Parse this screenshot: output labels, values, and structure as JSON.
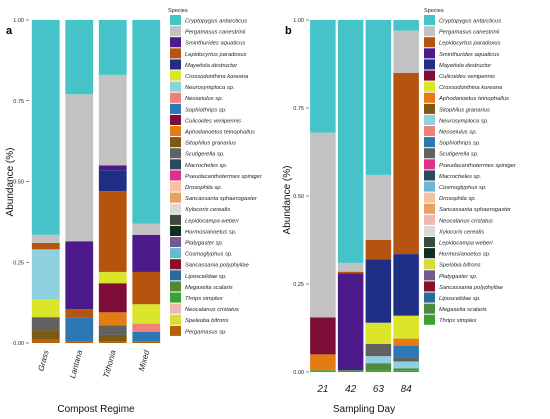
{
  "colors": {
    "Cryptopygus antarcticus": "#45c3c8",
    "Pergamasus canestrinii": "#c2c2c2",
    "Sminthurides aquaticus": "#4c1a8a",
    "Lepidocyrtus paradoxus": "#b5540f",
    "Mayetiola destructor": "#1f2f86",
    "Crossodonthina koreana": "#dbe52a",
    "Neurosymploca sp.": "#8ecfe0",
    "Neoseiulus sp.": "#f17f7a",
    "Sophiothrips sp.": "#2c78b2",
    "Culicoides venipennis": "#7e0e38",
    "Aphodanoetus teinophallus": "#e57c12",
    "Sitophilus granarius": "#7a5a14",
    "Scutigerella sp.": "#616161",
    "Macrocheles sp.": "#2a4a59",
    "Pseudacanthotermes spiniger": "#e02f8c",
    "Drosophila sp.": "#f4c2a0",
    "Sancassania sphaerogaster": "#e8a25f",
    "Xylocoris cerealis": "#d9d9d9",
    "Lepidocampa weberi": "#3b4a3b",
    "Hormosianoetus sp.": "#0f2e1c",
    "Platygaster sp.": "#6f5e8d",
    "Cosmoglyphus sp.": "#6db5d6",
    "Sancassania polyphyllae": "#8c0e22",
    "Liposcelidae sp.": "#2b6b96",
    "Megaselia scalaris": "#4e8a3b",
    "Thrips simplex": "#3ca132",
    "Neocalanus cristatus": "#f0b8b0",
    "Speleoba bifrons": "#d6dc3a",
    "Spelobia bifrons": "#d6dc3a",
    "Pergamasus sp.": "#b6610a"
  },
  "panel_a": {
    "label": "a",
    "xlabel": "Compost Regime",
    "ylabel": "Abundance (%)",
    "yticks": [
      "0.00",
      "0.25",
      "0.50",
      "0.75",
      "1.00"
    ],
    "legend_title": "Species",
    "legend": [
      "Cryptopygus antarcticus",
      "Pergamasus canestrinii",
      "Sminthurides aquaticus",
      "Lepidocyrtus paradoxus",
      "Mayetiola destructor",
      "Crossodonthina koreana",
      "Neurosymploca sp.",
      "Neoseiulus sp.",
      "Sophiothrips sp.",
      "Culicoides venipennis",
      "Aphodanoetus teinophallus",
      "Sitophilus granarius",
      "Scutigerella sp.",
      "Macrocheles sp.",
      "Pseudacanthotermes spiniger",
      "Drosophila sp.",
      "Sancassania sphaerogaster",
      "Xylocoris cerealis",
      "Lepidocampa weberi",
      "Hormosianoetus sp.",
      "Platygaster sp.",
      "Cosmoglyphus sp.",
      "Sancassania polyphyllae",
      "Liposcelidae sp.",
      "Megaselia scalaris",
      "Thrips simplex",
      "Neocalanus cristatus",
      "Speleoba bifrons",
      "Pergamasus sp."
    ]
  },
  "panel_b": {
    "label": "b",
    "xlabel": "Sampling Day",
    "ylabel": "Abundance (%)",
    "yticks": [
      "0.00",
      "0.25",
      "0.50",
      "0.75",
      "1.00"
    ],
    "legend_title": "Species",
    "legend": [
      "Cryptopygus antarcticus",
      "Pergamasus canestrinii",
      "Lepidocyrtus paradoxus",
      "Sminthurides aquaticus",
      "Mayetiola destructor",
      "Culicoides venipennis",
      "Crossodonthina koreana",
      "Aphodanoetus teinophallus",
      "Sitophilus granarius",
      "Neurosymploca sp.",
      "Neoseiulus sp.",
      "Sophiothrips sp.",
      "Scutigerella sp.",
      "Pseudacanthotermes spiniger",
      "Macrocheles sp.",
      "Cosmoglyphus sp.",
      "Drosophila sp.",
      "Sancassania sphaerogaster",
      "Neocalanus cristatus",
      "Xylocoris cerealis",
      "Lepidocampa weberi",
      "Hormosianoetus sp.",
      "Spelobia bifrons",
      "Platygaster sp.",
      "Sancassania polyphyllae",
      "Liposcelidae sp.",
      "Megaselia scalaris",
      "Thrips simplex"
    ]
  },
  "chart_data": [
    {
      "type": "bar",
      "stacked": true,
      "xlabel": "Compost Regime",
      "ylabel": "Abundance (%)",
      "ylim": [
        0,
        1
      ],
      "categories": [
        "Grass",
        "Lantana",
        "Tithonia",
        "Mixed"
      ],
      "series": [
        {
          "name": "Pergamasus sp.",
          "values": [
            0.01,
            0.005,
            0.005,
            0.005
          ]
        },
        {
          "name": "Sitophilus granarius",
          "values": [
            0.03,
            0.0,
            0.02,
            0.0
          ]
        },
        {
          "name": "Scutigerella sp.",
          "values": [
            0.04,
            0.0,
            0.03,
            0.0
          ]
        },
        {
          "name": "Aphodanoetus teinophallus",
          "values": [
            0.0,
            0.0,
            0.04,
            0.0
          ]
        },
        {
          "name": "Sophiothrips sp.",
          "values": [
            0.0,
            0.075,
            0.0,
            0.03
          ]
        },
        {
          "name": "Neoseiulus sp.",
          "values": [
            0.0,
            0.0,
            0.0,
            0.025
          ]
        },
        {
          "name": "Culicoides venipennis",
          "values": [
            0.0,
            0.0,
            0.09,
            0.0
          ]
        },
        {
          "name": "Crossodonthina koreana",
          "values": [
            0.055,
            0.0,
            0.035,
            0.06
          ]
        },
        {
          "name": "Neurosymploca sp.",
          "values": [
            0.155,
            0.0,
            0.0,
            0.0
          ]
        },
        {
          "name": "Lepidocyrtus paradoxus",
          "values": [
            0.02,
            0.025,
            0.25,
            0.1
          ]
        },
        {
          "name": "Mayetiola destructor",
          "values": [
            0.0,
            0.0,
            0.065,
            0.0
          ]
        },
        {
          "name": "Sminthurides aquaticus",
          "values": [
            0.0,
            0.21,
            0.015,
            0.115
          ]
        },
        {
          "name": "Pergamasus canestrinii",
          "values": [
            0.025,
            0.455,
            0.28,
            0.035
          ]
        },
        {
          "name": "Cryptopygus antarcticus",
          "values": [
            0.665,
            0.23,
            0.17,
            0.63
          ]
        }
      ]
    },
    {
      "type": "bar",
      "stacked": true,
      "xlabel": "Sampling Day",
      "ylabel": "Abundance (%)",
      "ylim": [
        0,
        1
      ],
      "categories": [
        "21",
        "42",
        "63",
        "84"
      ],
      "series": [
        {
          "name": "Thrips simplex",
          "values": [
            0.005,
            0.005,
            0.005,
            0.005
          ]
        },
        {
          "name": "Megaselia scalaris",
          "values": [
            0.0,
            0.0,
            0.02,
            0.005
          ]
        },
        {
          "name": "Neurosymploca sp.",
          "values": [
            0.0,
            0.0,
            0.02,
            0.02
          ]
        },
        {
          "name": "Scutigerella sp.",
          "values": [
            0.0,
            0.0,
            0.035,
            0.01
          ]
        },
        {
          "name": "Sophiothrips sp.",
          "values": [
            0.0,
            0.0,
            0.0,
            0.035
          ]
        },
        {
          "name": "Aphodanoetus teinophallus",
          "values": [
            0.045,
            0.0,
            0.0,
            0.02
          ]
        },
        {
          "name": "Crossodonthina koreana",
          "values": [
            0.0,
            0.0,
            0.06,
            0.065
          ]
        },
        {
          "name": "Culicoides venipennis",
          "values": [
            0.105,
            0.0,
            0.0,
            0.0
          ]
        },
        {
          "name": "Mayetiola destructor",
          "values": [
            0.0,
            0.0,
            0.18,
            0.175
          ]
        },
        {
          "name": "Sminthurides aquaticus",
          "values": [
            0.0,
            0.275,
            0.0,
            0.0
          ]
        },
        {
          "name": "Lepidocyrtus paradoxus",
          "values": [
            0.0,
            0.005,
            0.055,
            0.515
          ]
        },
        {
          "name": "Pergamasus canestrinii",
          "values": [
            0.525,
            0.025,
            0.185,
            0.12
          ]
        },
        {
          "name": "Cryptopygus antarcticus",
          "values": [
            0.32,
            0.69,
            0.44,
            0.03
          ]
        }
      ]
    }
  ]
}
